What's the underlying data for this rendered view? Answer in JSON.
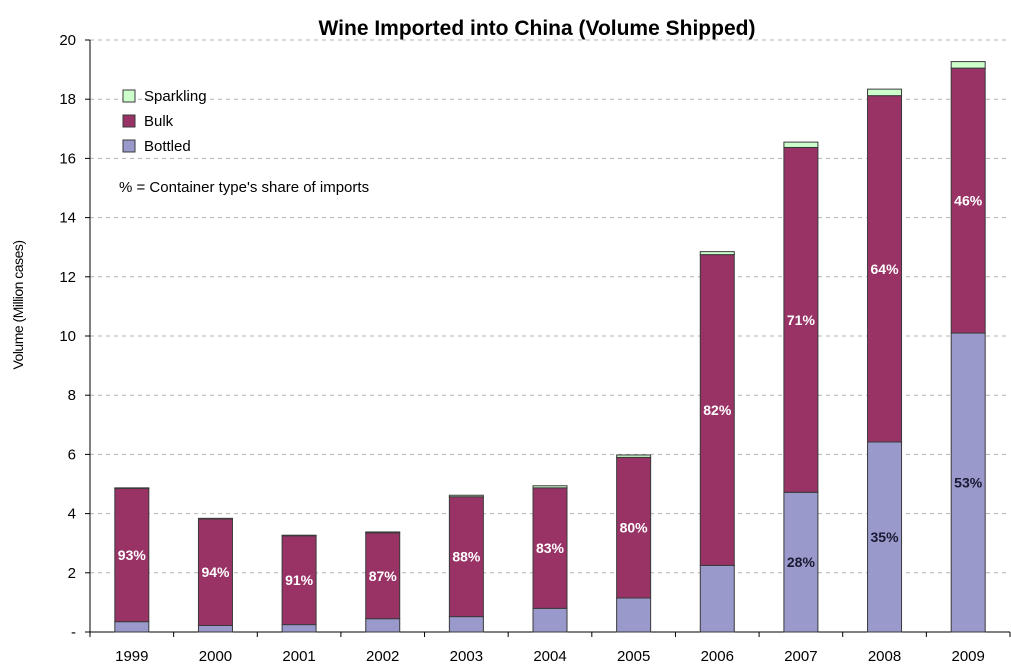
{
  "chart_data": {
    "type": "bar",
    "stacked": true,
    "title": "Wine Imported into China (Volume Shipped)",
    "ylabel": "Volume (Million cases)",
    "xlabel": "",
    "ylim": [
      0,
      20
    ],
    "y_ticks": [
      {
        "value": 0,
        "label": "-"
      },
      {
        "value": 2,
        "label": "2"
      },
      {
        "value": 4,
        "label": "4"
      },
      {
        "value": 6,
        "label": "6"
      },
      {
        "value": 8,
        "label": "8"
      },
      {
        "value": 10,
        "label": "10"
      },
      {
        "value": 12,
        "label": "12"
      },
      {
        "value": 14,
        "label": "14"
      },
      {
        "value": 16,
        "label": "16"
      },
      {
        "value": 18,
        "label": "18"
      },
      {
        "value": 20,
        "label": "20"
      }
    ],
    "grid": "horizontal dashed",
    "legend_position": "top-left",
    "annotation": "% = Container type's share of imports",
    "categories": [
      "1999",
      "2000",
      "2001",
      "2002",
      "2003",
      "2004",
      "2005",
      "2006",
      "2007",
      "2008",
      "2009"
    ],
    "series": [
      {
        "name": "Bottled",
        "color": "#9999cc",
        "values": [
          0.35,
          0.22,
          0.25,
          0.45,
          0.52,
          0.8,
          1.15,
          2.25,
          4.72,
          6.42,
          10.1
        ],
        "labels": [
          "",
          "",
          "",
          "",
          "",
          "",
          "",
          "",
          "28%",
          "35%",
          "53%"
        ]
      },
      {
        "name": "Bulk",
        "color": "#993366",
        "values": [
          4.5,
          3.6,
          3.0,
          2.9,
          4.05,
          4.07,
          4.75,
          10.5,
          11.65,
          11.7,
          8.95
        ],
        "labels": [
          "93%",
          "94%",
          "91%",
          "87%",
          "88%",
          "83%",
          "80%",
          "82%",
          "71%",
          "64%",
          "46%"
        ]
      },
      {
        "name": "Sparkling",
        "color": "#ccffcc",
        "values": [
          0.02,
          0.02,
          0.02,
          0.03,
          0.05,
          0.07,
          0.08,
          0.1,
          0.18,
          0.22,
          0.22
        ],
        "labels": [
          "",
          "",
          "",
          "",
          "",
          "",
          "",
          "",
          "",
          "",
          ""
        ]
      }
    ],
    "legend_order": [
      "Sparkling",
      "Bulk",
      "Bottled"
    ]
  }
}
